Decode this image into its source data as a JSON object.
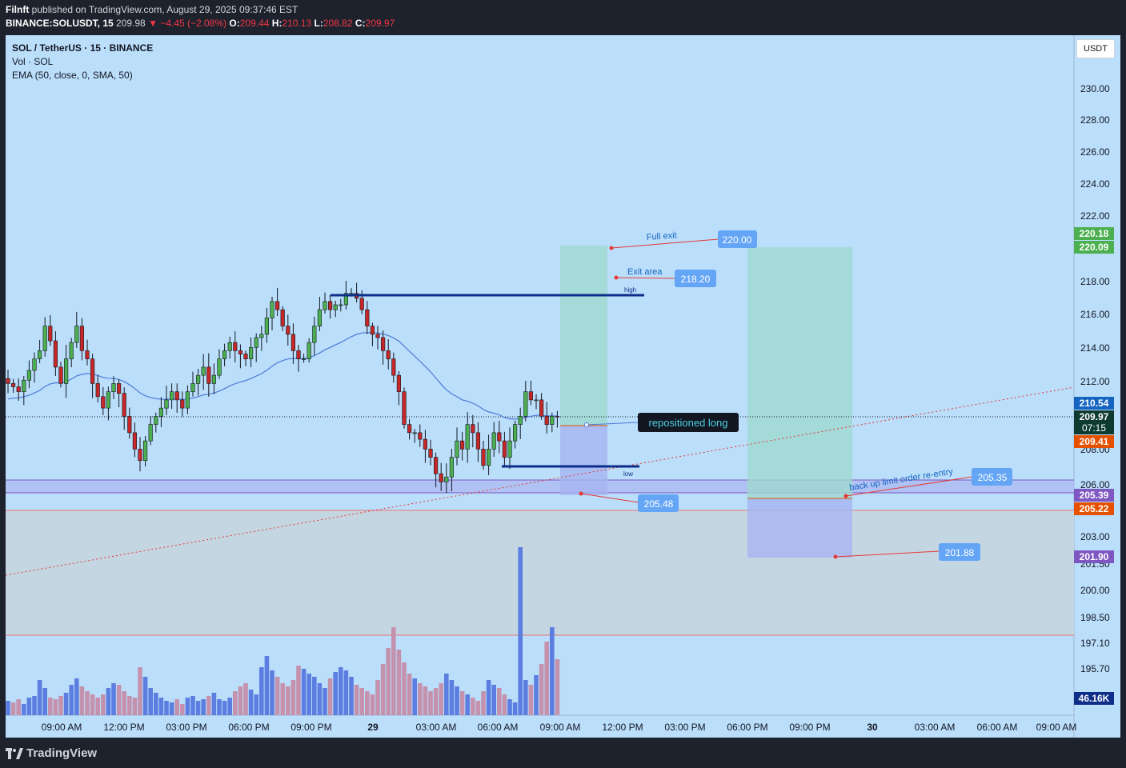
{
  "header": {
    "publisher": "Filnft",
    "published_text": "published on TradingView.com, August 29, 2025 09:37:46 EST",
    "symbol_line": "BINANCE:SOLUSDT, 15",
    "last": "209.98",
    "change": "−4.45 (−2.08%)",
    "o_label": "O:",
    "o": "209.44",
    "h_label": "H:",
    "h": "210.13",
    "l_label": "L:",
    "l": "208.82",
    "c_label": "C:",
    "c": "209.97"
  },
  "legend": {
    "title": "SOL / TetherUS · 15 · BINANCE",
    "vol": "Vol · SOL",
    "ema": "EMA (50, close, 0, SMA, 50)"
  },
  "currency_button": "USDT",
  "footer": {
    "brand": "TradingView"
  },
  "colors": {
    "background": "#bbdefb",
    "up": "#26a69a",
    "down": "#ef5350",
    "candle_up": "#2e7d32",
    "candle_down": "#b71c1c",
    "ema": "#4a7bd8",
    "line_dark_blue": "#0d2f8a",
    "vol_up": "#5b7ee0",
    "vol_down": "#c492ad"
  },
  "annotations": {
    "full_exit": "Full exit",
    "exit_area": "Exit area",
    "high": "high",
    "low": "low",
    "repositioned": "repositioned long",
    "backup": "back up limit order re-entry",
    "label_220": "220.00",
    "label_2182": "218.20",
    "label_20548": "205.48",
    "label_20535": "205.35",
    "label_20188": "201.88"
  },
  "price_tags": {
    "t22018": "220.18",
    "t22009": "220.09",
    "t21054": "210.54",
    "t20997": "209.97",
    "countdown": "07:15",
    "t20941": "209.41",
    "t20539": "205.39",
    "t20522": "205.22",
    "t20190": "201.90",
    "vol": "46.16K"
  },
  "chart_data": {
    "type": "candlestick",
    "symbol": "SOLUSDT",
    "timeframe": "15",
    "y_axis_ticks": [
      "230.00",
      "228.00",
      "226.00",
      "224.00",
      "222.00",
      "218.00",
      "216.00",
      "214.00",
      "212.00",
      "208.00",
      "206.00",
      "203.00",
      "201.50",
      "200.00",
      "198.50",
      "197.10",
      "195.70"
    ],
    "x_axis_ticks": [
      "09:00 AM",
      "12:00 PM",
      "03:00 PM",
      "06:00 PM",
      "09:00 PM",
      "29",
      "03:00 AM",
      "06:00 AM",
      "09:00 AM",
      "12:00 PM",
      "03:00 PM",
      "06:00 PM",
      "09:00 PM",
      "30",
      "03:00 AM",
      "06:00 AM",
      "09:00 AM"
    ],
    "ohlc_close_approx": [
      212.0,
      211.8,
      211.5,
      212.2,
      212.8,
      213.5,
      214.0,
      215.5,
      214.6,
      213.0,
      212.0,
      213.5,
      214.5,
      215.5,
      214.0,
      213.5,
      212.0,
      211.2,
      210.5,
      211.5,
      212.0,
      211.4,
      210.0,
      209.0,
      208.0,
      207.3,
      208.5,
      209.5,
      210.0,
      210.5,
      211.0,
      211.5,
      211.0,
      210.5,
      211.5,
      212.0,
      212.5,
      213.0,
      212.0,
      212.5,
      213.5,
      214.0,
      214.5,
      214.0,
      213.8,
      213.5,
      214.2,
      214.8,
      215.0,
      216.0,
      217.0,
      216.5,
      215.5,
      215.0,
      214.0,
      213.5,
      213.5,
      214.5,
      215.5,
      216.5,
      217.0,
      216.5,
      216.8,
      216.8,
      217.5,
      217.5,
      217.2,
      216.5,
      215.5,
      215.0,
      214.8,
      214.0,
      213.5,
      212.5,
      211.5,
      209.5,
      209.0,
      209.0,
      208.6,
      208.0,
      207.5,
      206.5,
      206.0,
      206.3,
      207.5,
      208.5,
      208.0,
      209.5,
      209.0,
      208.0,
      207.0,
      208.0,
      209.0,
      208.5,
      207.5,
      208.5,
      209.5,
      210.0,
      211.5,
      211.0,
      211.0,
      210.0,
      209.5,
      210.0,
      209.97
    ],
    "ema_50_approx": "rises from ~211.5 to ~213.9 around 29 00:00 then declines to ~210.5",
    "volume_scale": "volume peak at ~06:00-09:00 AM of 29",
    "positions": [
      {
        "type": "long",
        "entry": 209.41,
        "stop": 205.22,
        "target": 220.09
      },
      {
        "type": "long",
        "entry": 205.39,
        "stop": 201.9,
        "target": 220.18
      }
    ],
    "horizontal_lines": [
      {
        "label": "high",
        "price": 217.2
      },
      {
        "label": "low",
        "price": 207.0
      }
    ],
    "price_labels": [
      220.0,
      218.2,
      205.48,
      205.35,
      201.88
    ],
    "current_price": 209.97
  }
}
